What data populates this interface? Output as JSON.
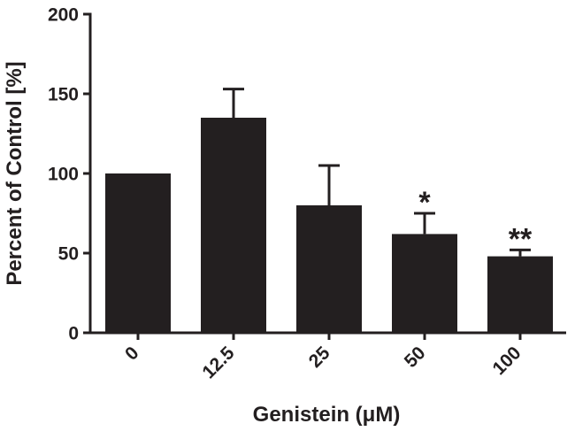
{
  "chart_data": {
    "type": "bar",
    "title": "",
    "xlabel": "Genistein (μM)",
    "ylabel": "Percent of Control [%]",
    "categories": [
      "0",
      "12.5",
      "25",
      "50",
      "100"
    ],
    "values": [
      100,
      135,
      80,
      62,
      48
    ],
    "error_upper": [
      0,
      18,
      25,
      13,
      4
    ],
    "significance": [
      "",
      "",
      "",
      "*",
      "**"
    ],
    "ylim": [
      0,
      200
    ],
    "yticks": [
      0,
      50,
      100,
      150,
      200
    ],
    "grid": false,
    "legend": "none",
    "colors": {
      "bar": "#231f20",
      "axis": "#231f20",
      "background": "#ffffff"
    }
  }
}
